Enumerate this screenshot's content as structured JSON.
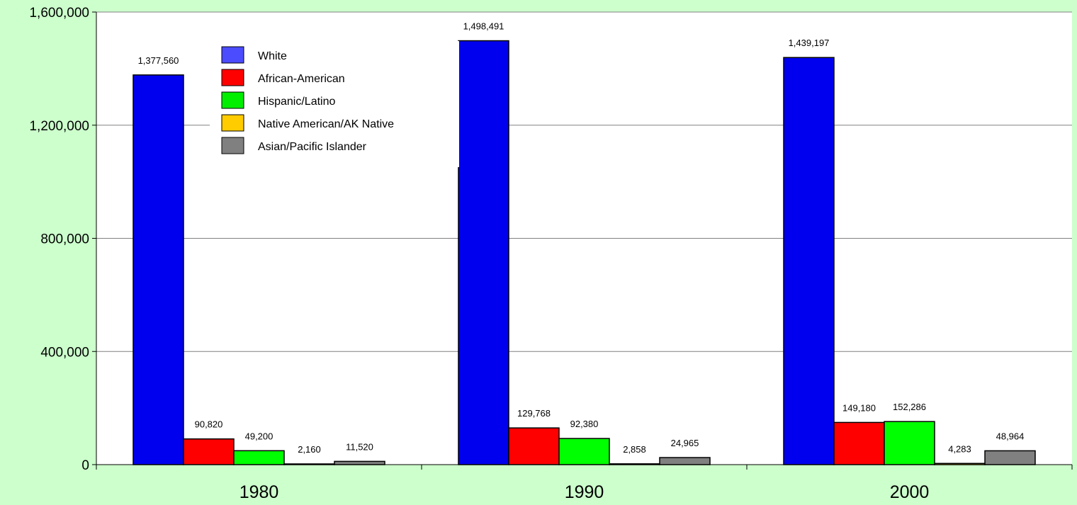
{
  "colors": {
    "page_background": "#ccffcc",
    "plot_background": "#ffffff",
    "gridline": "#808080",
    "axis": "#000000"
  },
  "chart_data": {
    "type": "bar",
    "categories": [
      "1980",
      "1990",
      "2000"
    ],
    "series": [
      {
        "name": "White",
        "color": "#0000ee",
        "legend_color": "#4c4cff",
        "values": [
          1377560,
          1498491,
          1439197
        ],
        "labels": [
          "1,377,560",
          "1,498,491",
          "1,439,197"
        ]
      },
      {
        "name": "African-American",
        "color": "#ff0000",
        "legend_color": "#ff0000",
        "values": [
          90820,
          129768,
          149180
        ],
        "labels": [
          "90,820",
          "129,768",
          "149,180"
        ]
      },
      {
        "name": "Hispanic/Latino",
        "color": "#00ff00",
        "legend_color": "#00ee00",
        "values": [
          49200,
          92380,
          152286
        ],
        "labels": [
          "49,200",
          "92,380",
          "152,286"
        ]
      },
      {
        "name": "Native American/AK Native",
        "color": "#ffcc00",
        "legend_color": "#ffcc00",
        "values": [
          2160,
          2858,
          4283
        ],
        "labels": [
          "2,160",
          "2,858",
          "4,283"
        ]
      },
      {
        "name": "Asian/Pacific Islander",
        "color": "#808080",
        "legend_color": "#808080",
        "values": [
          11520,
          24965,
          48964
        ],
        "labels": [
          "11,520",
          "24,965",
          "48,964"
        ]
      }
    ],
    "yticks": [
      0,
      400000,
      800000,
      1200000,
      1600000
    ],
    "ytick_labels": [
      "0",
      "400,000",
      "800,000",
      "1,200,000",
      "1,600,000"
    ],
    "ylim": [
      0,
      1600000
    ],
    "grid": true,
    "legend_position": "top-left, inside plot",
    "title": "",
    "xlabel": "",
    "ylabel": ""
  }
}
